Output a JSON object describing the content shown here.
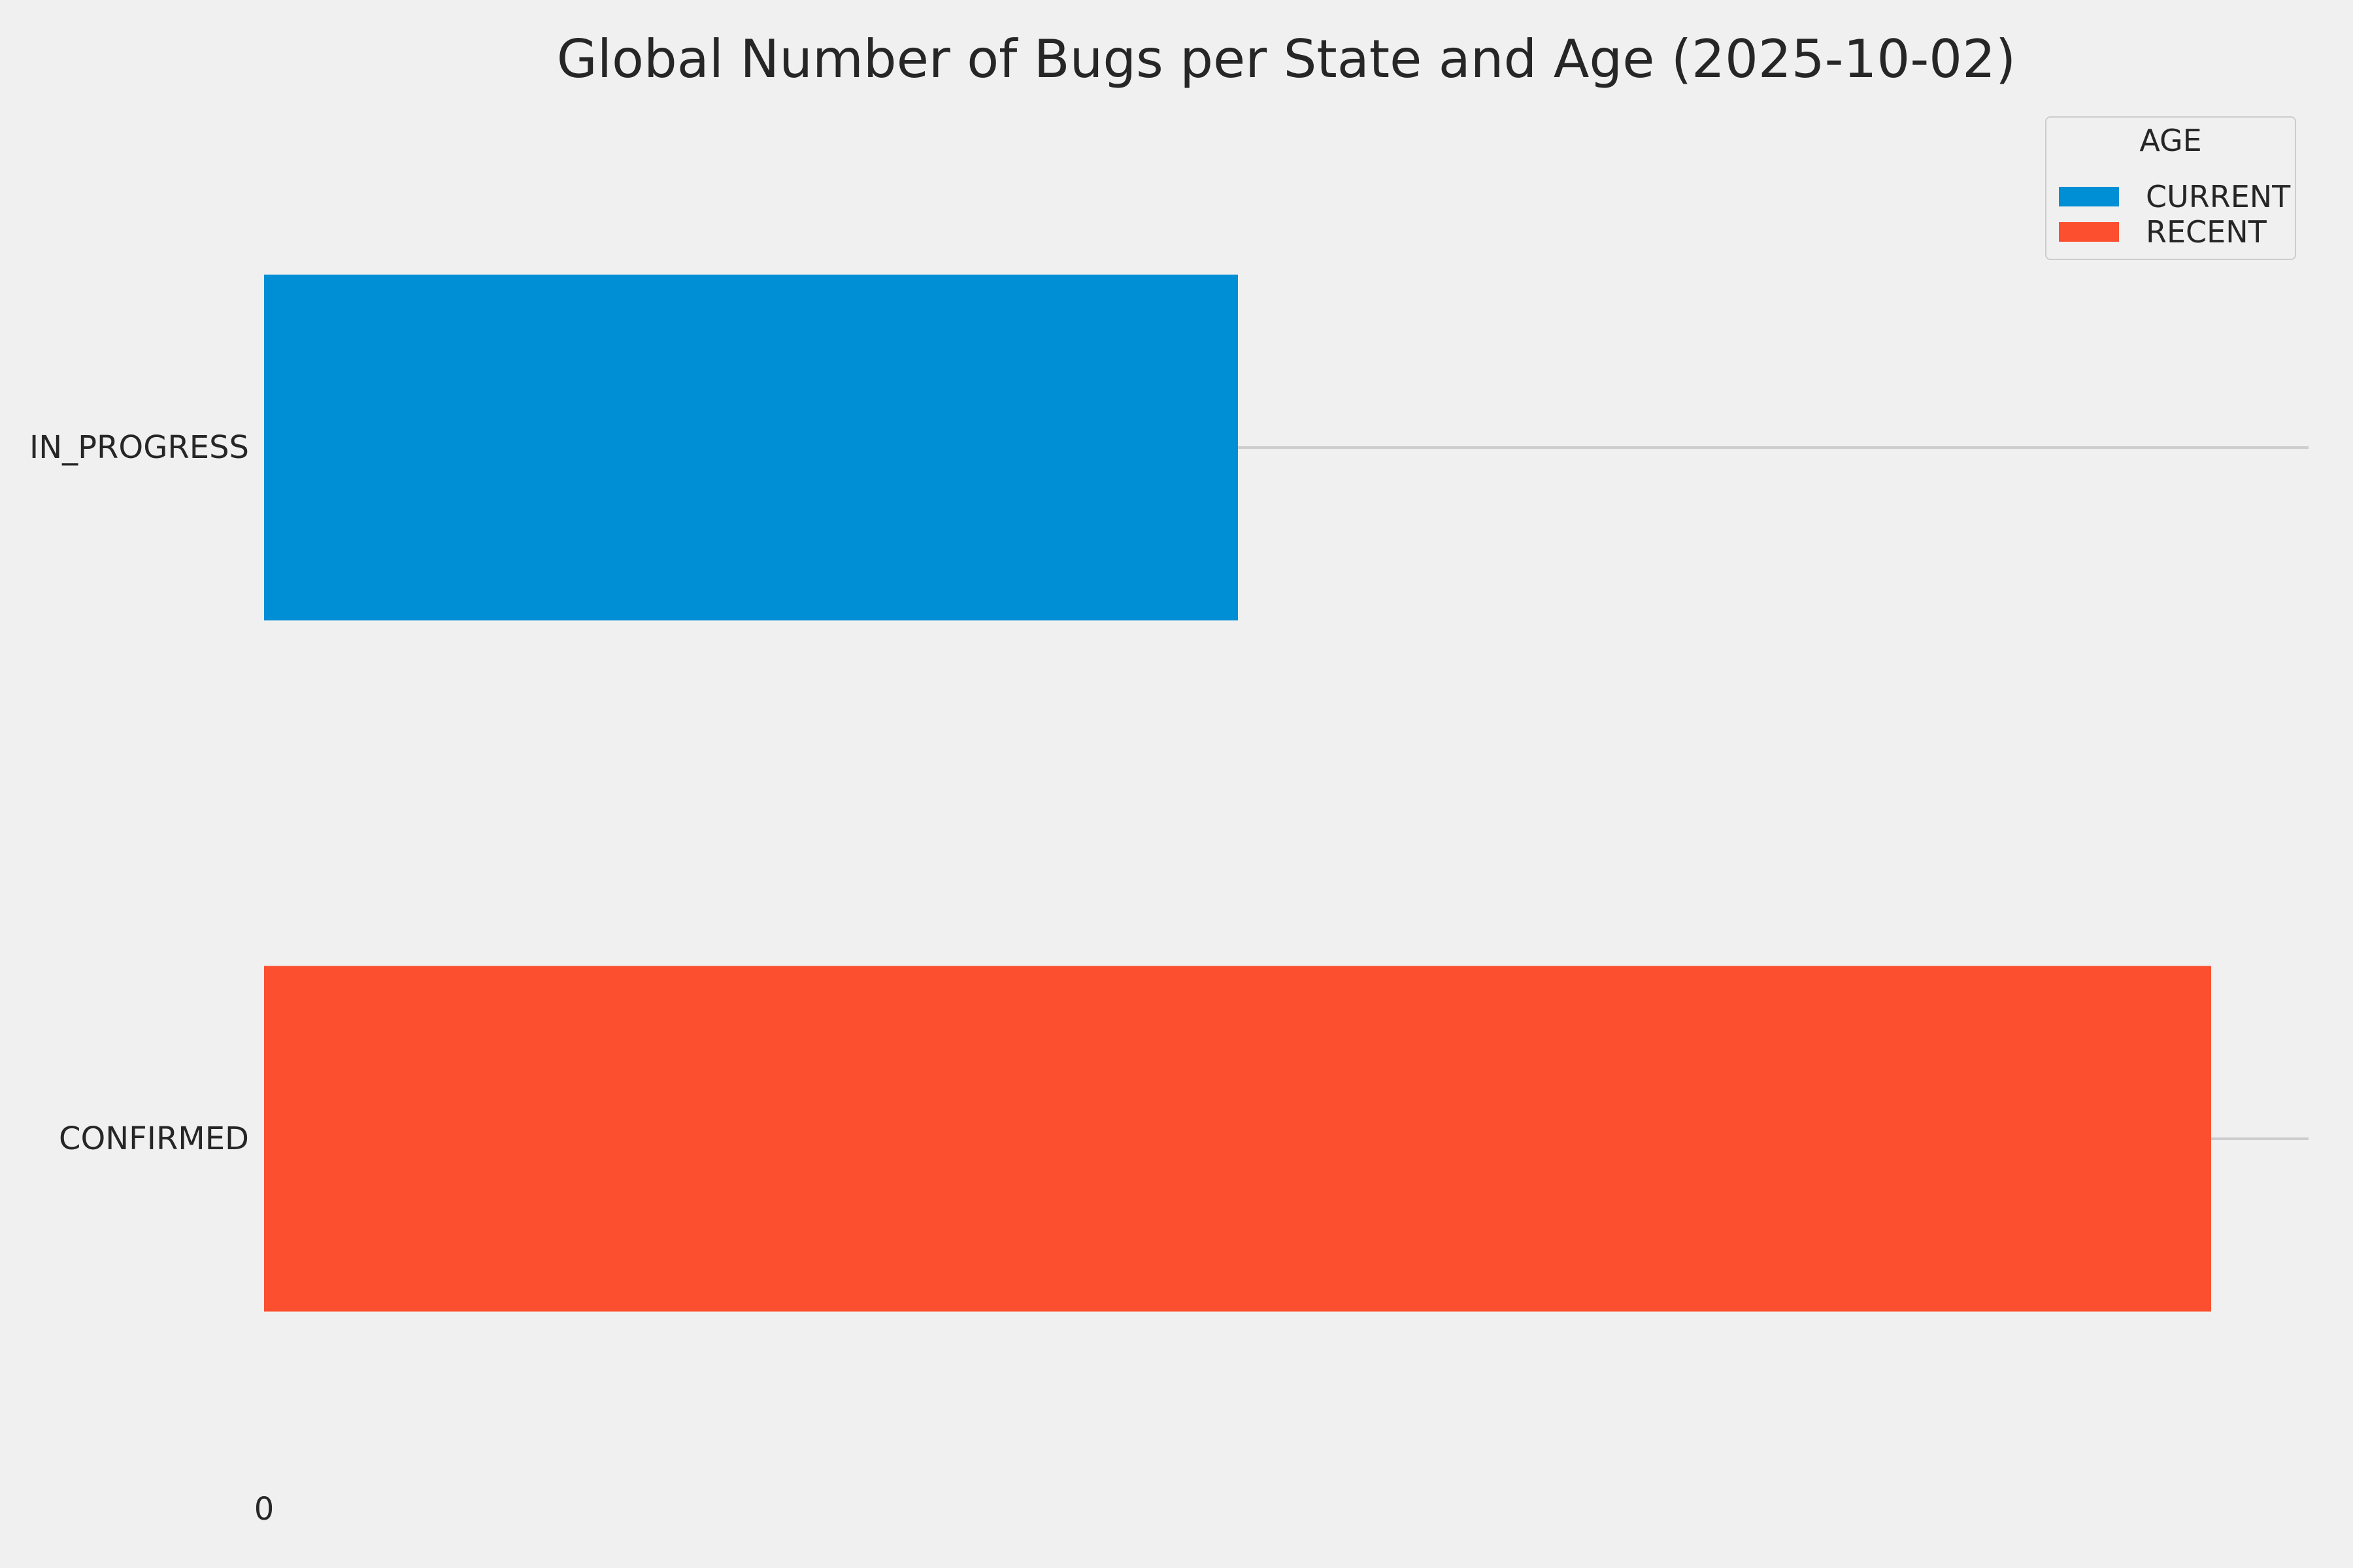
{
  "title": "Global Number of Bugs per State and Age (2025-10-02)",
  "colors": {
    "background": "#f0f0f0",
    "gridline": "#cdcdcd",
    "text": "#262626",
    "current": "#008fd5",
    "recent": "#fc4f30"
  },
  "legend": {
    "title": "AGE",
    "entries": [
      {
        "label": "CURRENT",
        "color": "#008fd5"
      },
      {
        "label": "RECENT",
        "color": "#fc4f30"
      }
    ]
  },
  "axes": {
    "x_tick_labels": [
      "0"
    ],
    "y_tick_labels": [
      "IN_PROGRESS",
      "CONFIRMED"
    ]
  },
  "chart_data": {
    "type": "bar",
    "orientation": "horizontal",
    "title": "Global Number of Bugs per State and Age (2025-10-02)",
    "categories": [
      "IN_PROGRESS",
      "CONFIRMED"
    ],
    "series": [
      {
        "name": "CURRENT",
        "color": "#008fd5",
        "values": [
          1,
          null
        ]
      },
      {
        "name": "RECENT",
        "color": "#fc4f30",
        "values": [
          null,
          2
        ]
      }
    ],
    "xlabel": "",
    "ylabel": "",
    "xlim": [
      0,
      2.1
    ],
    "xticks": [
      0
    ],
    "grid": "category-lines",
    "legend_position": "upper-right",
    "note": "bar lengths read from pixels; values are relative units (ratio 1:2), only the 0 tick is labeled"
  }
}
